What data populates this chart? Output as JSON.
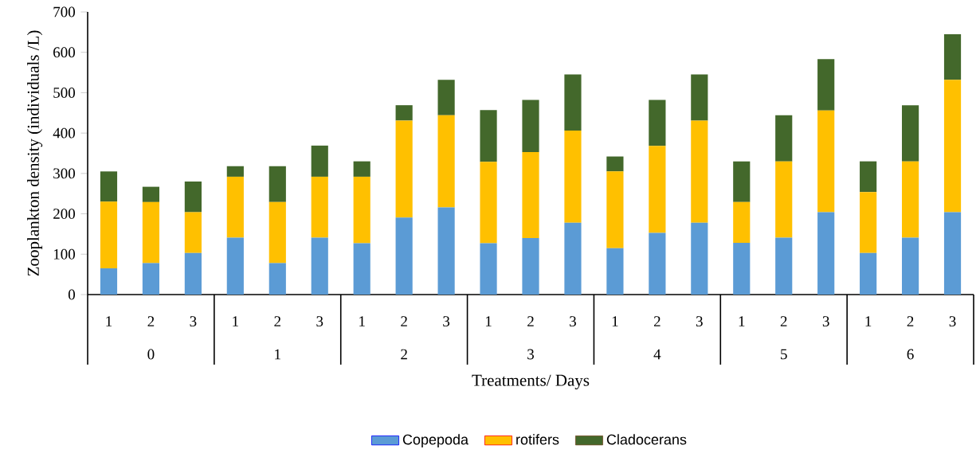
{
  "chart_data": {
    "type": "bar",
    "stacked": true,
    "xlabel": "Treatments/ Days",
    "ylabel": "Zooplankton density (individuals /L)",
    "categories": [
      "1",
      "2",
      "3",
      "1",
      "2",
      "3",
      "1",
      "2",
      "3",
      "1",
      "2",
      "3",
      "1",
      "2",
      "3",
      "1",
      "2",
      "3",
      "1",
      "2",
      "3"
    ],
    "series": [
      {
        "name": "Copepoda",
        "color": "#5b9bd5",
        "values": [
          65,
          78,
          103,
          141,
          78,
          141,
          127,
          191,
          216,
          127,
          140,
          178,
          115,
          153,
          178,
          128,
          141,
          204,
          103,
          141,
          204
        ]
      },
      {
        "name": "rotifers",
        "color": "#ffc000",
        "values": [
          165,
          151,
          101,
          151,
          151,
          151,
          165,
          240,
          228,
          202,
          213,
          228,
          190,
          215,
          253,
          101,
          189,
          252,
          151,
          189,
          328
        ]
      },
      {
        "name": "Cladocerans",
        "color": "#43682b",
        "values": [
          75,
          38,
          76,
          26,
          89,
          77,
          38,
          38,
          88,
          128,
          129,
          139,
          37,
          114,
          114,
          101,
          114,
          127,
          76,
          139,
          113
        ]
      }
    ],
    "annotations": [
      "0",
      "1",
      "2",
      "3",
      "4",
      "5",
      "6"
    ],
    "ylim": [
      0,
      700
    ],
    "yticks": [
      0,
      100,
      200,
      300,
      400,
      500,
      600,
      700
    ],
    "legend": "bottom"
  }
}
